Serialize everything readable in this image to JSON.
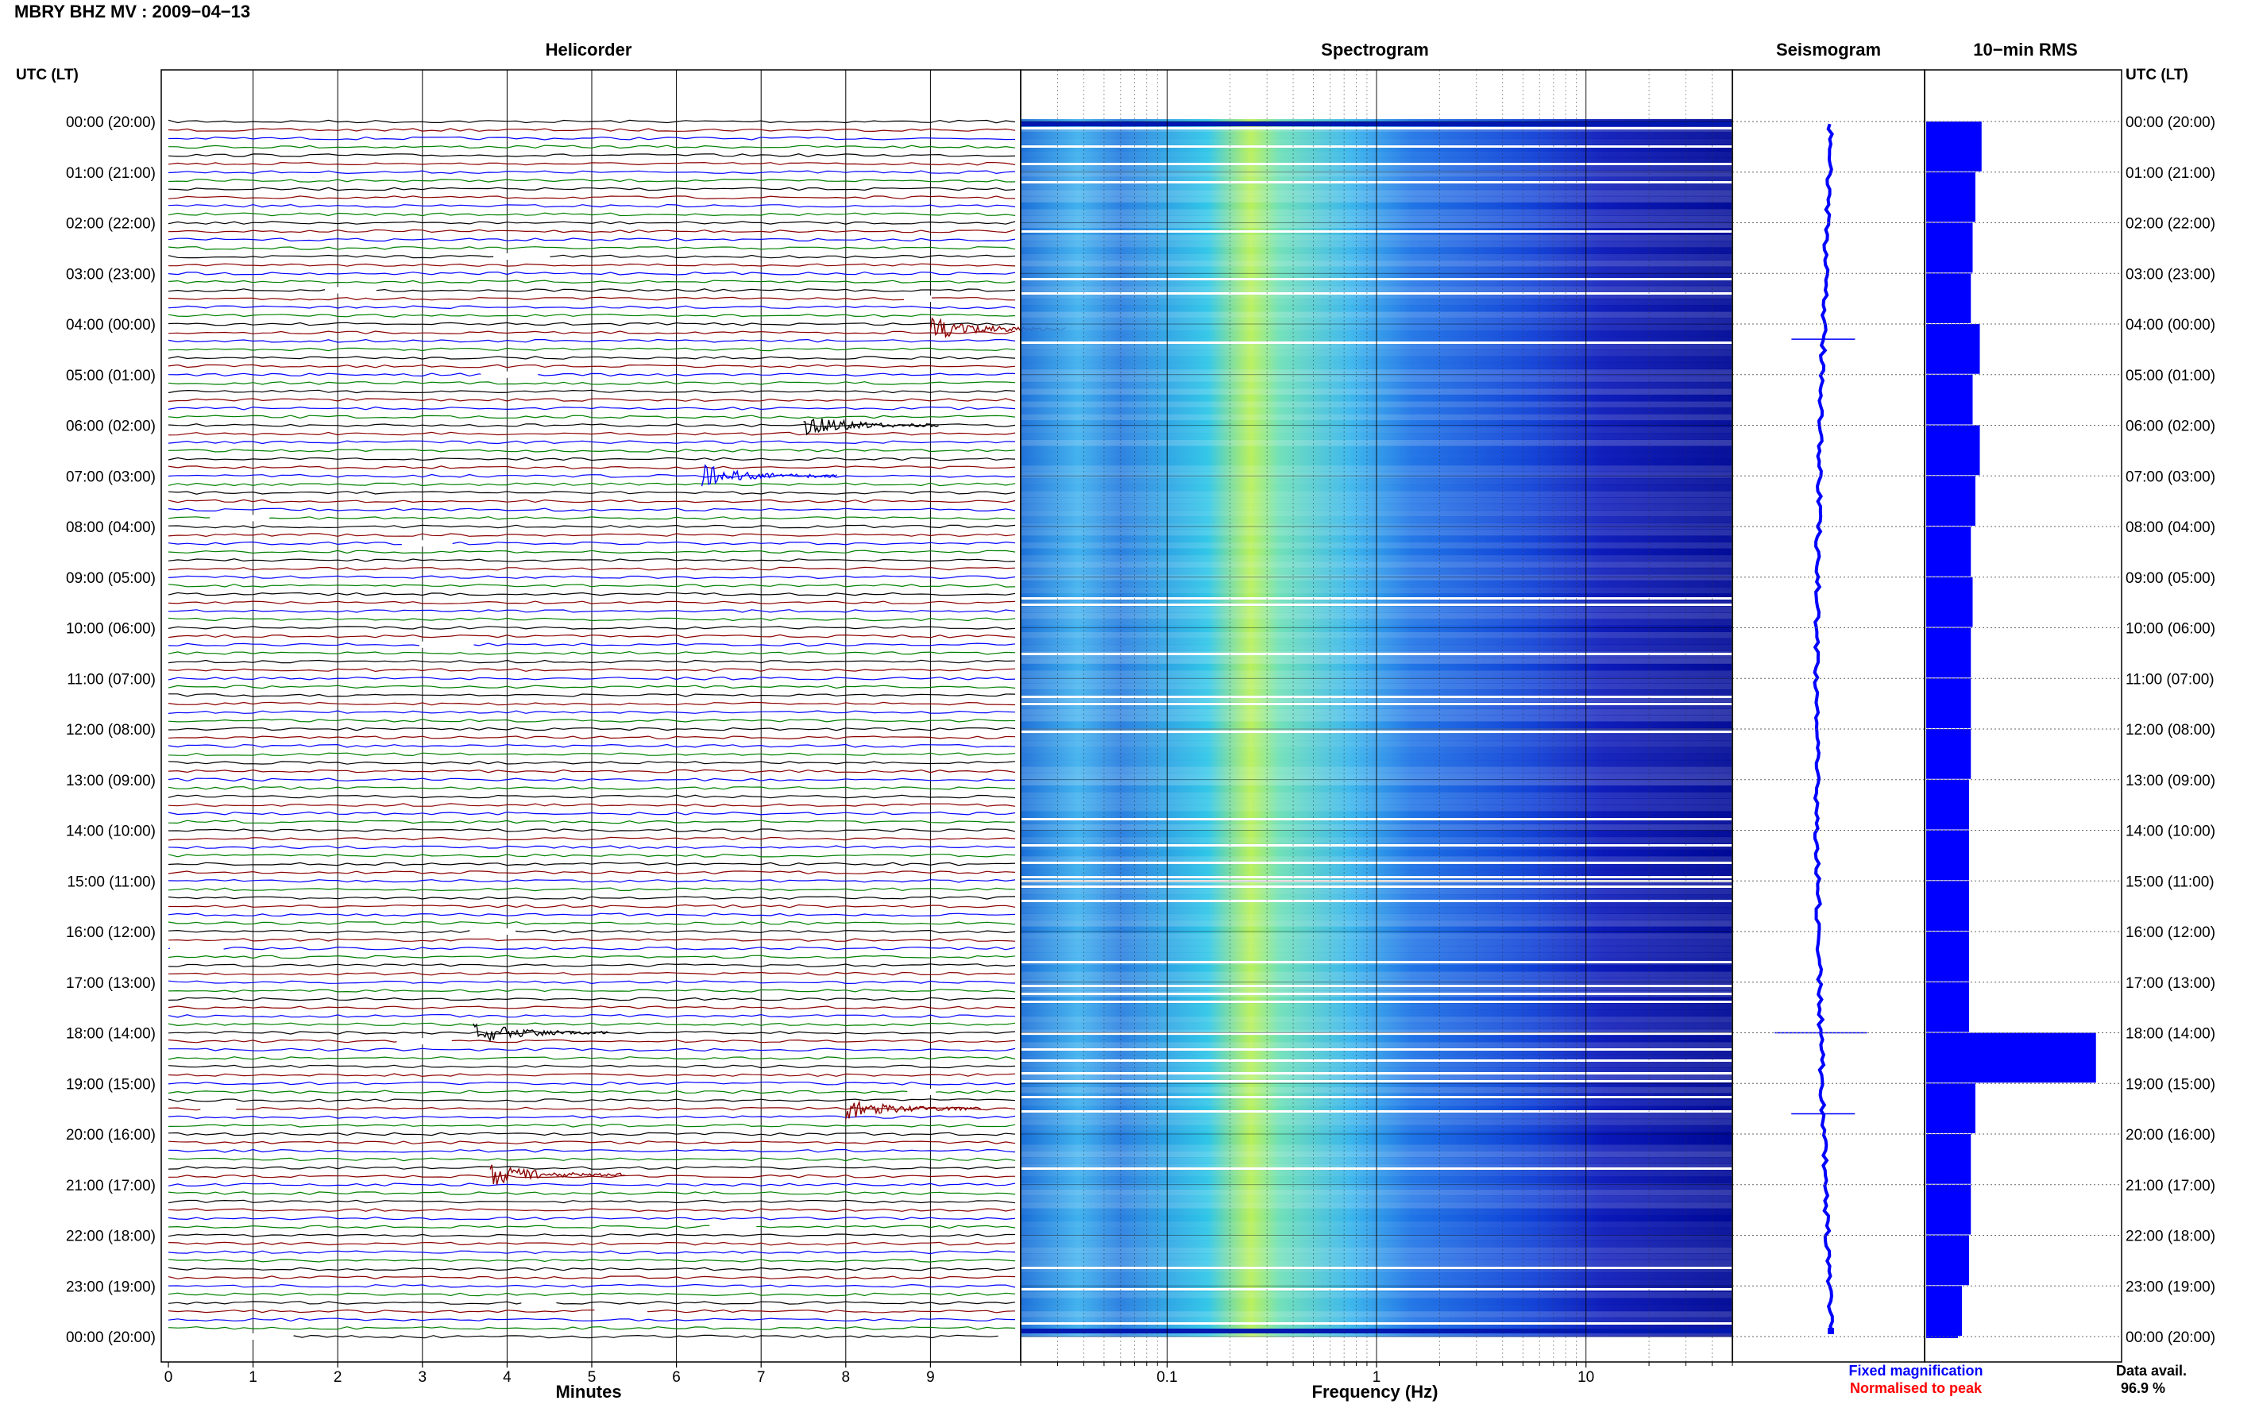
{
  "header": {
    "station_title": "MBRY BHZ MV : 2009−04−13"
  },
  "panels": {
    "helicorder": "Helicorder",
    "spectrogram": "Spectrogram",
    "seismogram": "Seismogram",
    "rms": "10−min RMS"
  },
  "axes": {
    "left_header": "UTC (LT)",
    "right_header": "UTC (LT)",
    "xlabel_helicorder": "Minutes",
    "xlabel_spectrogram": "Frequency (Hz)"
  },
  "legend": {
    "fixed": "Fixed magnification",
    "normalised": "Normalised to peak",
    "data_avail_label": "Data avail.",
    "data_avail_value": "96.9 %"
  },
  "colors": {
    "fixed": "#0000ff",
    "normalised": "#ff0000"
  },
  "chart_data": [
    {
      "type": "line",
      "title": "Helicorder",
      "xlabel": "Minutes",
      "xlim": [
        0,
        10
      ],
      "x_ticks": [
        "0",
        "1",
        "2",
        "3",
        "4",
        "5",
        "6",
        "7",
        "8",
        "9"
      ],
      "y_ticks_left": [
        "00:00 (20:00)",
        "01:00 (21:00)",
        "02:00 (22:00)",
        "03:00 (23:00)",
        "04:00 (00:00)",
        "05:00 (01:00)",
        "06:00 (02:00)",
        "07:00 (03:00)",
        "08:00 (04:00)",
        "09:00 (05:00)",
        "10:00 (06:00)",
        "11:00 (07:00)",
        "12:00 (08:00)",
        "13:00 (09:00)",
        "14:00 (10:00)",
        "15:00 (11:00)",
        "16:00 (12:00)",
        "17:00 (13:00)",
        "18:00 (14:00)",
        "19:00 (15:00)",
        "20:00 (16:00)",
        "21:00 (17:00)",
        "22:00 (18:00)",
        "23:00 (19:00)",
        "00:00 (20:00)"
      ],
      "trace_colors": [
        "#000000",
        "#8b0000",
        "#0000ff",
        "#008000"
      ],
      "events": [
        {
          "hour": 4.1,
          "minute": 9.0,
          "color": "#8b0000"
        },
        {
          "hour": 6.0,
          "minute": 7.5,
          "color": "#000000"
        },
        {
          "hour": 7.0,
          "minute": 6.3,
          "color": "#0000ff"
        },
        {
          "hour": 18.0,
          "minute": 3.6,
          "color": "#000000"
        },
        {
          "hour": 19.5,
          "minute": 8.0,
          "color": "#8b0000"
        },
        {
          "hour": 20.8,
          "minute": 3.8,
          "color": "#8b0000"
        }
      ]
    },
    {
      "type": "heatmap",
      "title": "Spectrogram",
      "xlabel": "Frequency (Hz)",
      "x_scale": "log",
      "xlim": [
        0.02,
        50
      ],
      "x_ticks": [
        "0.1",
        "1",
        "10"
      ],
      "peak_frequency_hz": 0.25
    },
    {
      "type": "line",
      "title": "Seismogram",
      "spikes_at_hour": [
        4.3,
        18.0,
        19.6
      ]
    },
    {
      "type": "bar",
      "title": "10−min RMS",
      "hours": [
        0,
        1,
        2,
        3,
        4,
        5,
        6,
        7,
        8,
        9,
        10,
        11,
        12,
        13,
        14,
        15,
        16,
        17,
        18,
        19,
        20,
        21,
        22,
        23
      ],
      "values": [
        0.62,
        0.55,
        0.52,
        0.5,
        0.6,
        0.52,
        0.6,
        0.55,
        0.5,
        0.52,
        0.5,
        0.5,
        0.5,
        0.48,
        0.48,
        0.48,
        0.48,
        0.48,
        1.9,
        0.55,
        0.5,
        0.5,
        0.48,
        0.4
      ]
    }
  ]
}
